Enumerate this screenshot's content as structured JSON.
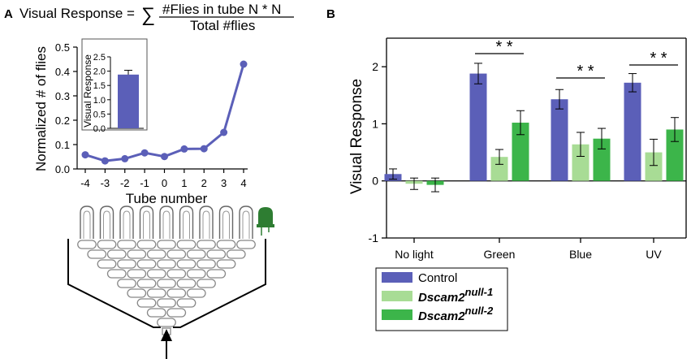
{
  "panel_a": {
    "label": "A",
    "formula": {
      "lhs": "Visual Response =",
      "sum": "∑",
      "numerator": "#Flies in tube N * N",
      "denominator": "Total #flies"
    },
    "device_icon": "light-emitting-diode-icon",
    "arrow_icon": "up-arrow-icon"
  },
  "panel_b": {
    "label": "B"
  },
  "colors": {
    "control": "#5b5fb8",
    "null1": "#a8dc95",
    "null2": "#3cb54a",
    "line": "#5b5fb8",
    "led": "#2e7d32"
  },
  "chart_data": [
    {
      "id": "normalized-flies",
      "type": "line",
      "title": "",
      "xlabel": "Tube number",
      "ylabel": "Normalized # of flies",
      "x": [
        -4,
        -3,
        -2,
        -1,
        0,
        1,
        2,
        3,
        4
      ],
      "y": [
        0.058,
        0.033,
        0.042,
        0.066,
        0.051,
        0.082,
        0.083,
        0.15,
        0.43
      ],
      "x_tick_labels": [
        "-4",
        "-3",
        "-2",
        "-1",
        "0",
        "1",
        "2",
        "3",
        "4"
      ],
      "y_ticks": [
        "0.0",
        "0.1",
        "0.2",
        "0.3",
        "0.4",
        "0.5"
      ],
      "ylim": [
        0,
        0.5
      ],
      "grid": false
    },
    {
      "id": "inset-visual-response",
      "type": "bar",
      "ylabel": "Visual Response",
      "categories": [
        ""
      ],
      "values": [
        1.88
      ],
      "error": [
        0.15
      ],
      "y_ticks": [
        "0.0",
        "0.5",
        "1.0",
        "1.5",
        "2.0",
        "2.5"
      ],
      "ylim": [
        0,
        2.5
      ]
    },
    {
      "id": "visual-response-by-light",
      "type": "bar",
      "ylabel": "Visual Response",
      "categories": [
        "No light",
        "Green",
        "Blue",
        "UV"
      ],
      "y_ticks": [
        "-1",
        "0",
        "1",
        "2"
      ],
      "ylim": [
        -1,
        2.5
      ],
      "series": [
        {
          "name": "Control",
          "name_base": "",
          "name_sup": "",
          "values": [
            0.12,
            1.88,
            1.43,
            1.72
          ],
          "error": [
            0.09,
            0.18,
            0.17,
            0.16
          ]
        },
        {
          "name": "Dscam2null-1",
          "name_base": "Dscam2",
          "name_sup": "null-1",
          "values": [
            -0.05,
            0.42,
            0.64,
            0.5
          ],
          "error": [
            0.1,
            0.13,
            0.21,
            0.23
          ]
        },
        {
          "name": "Dscam2null-2",
          "name_base": "Dscam2",
          "name_sup": "null-2",
          "values": [
            -0.07,
            1.02,
            0.74,
            0.9
          ],
          "error": [
            0.12,
            0.21,
            0.18,
            0.21
          ]
        }
      ],
      "significance": [
        "",
        "* *",
        "* *",
        "* *"
      ]
    }
  ]
}
